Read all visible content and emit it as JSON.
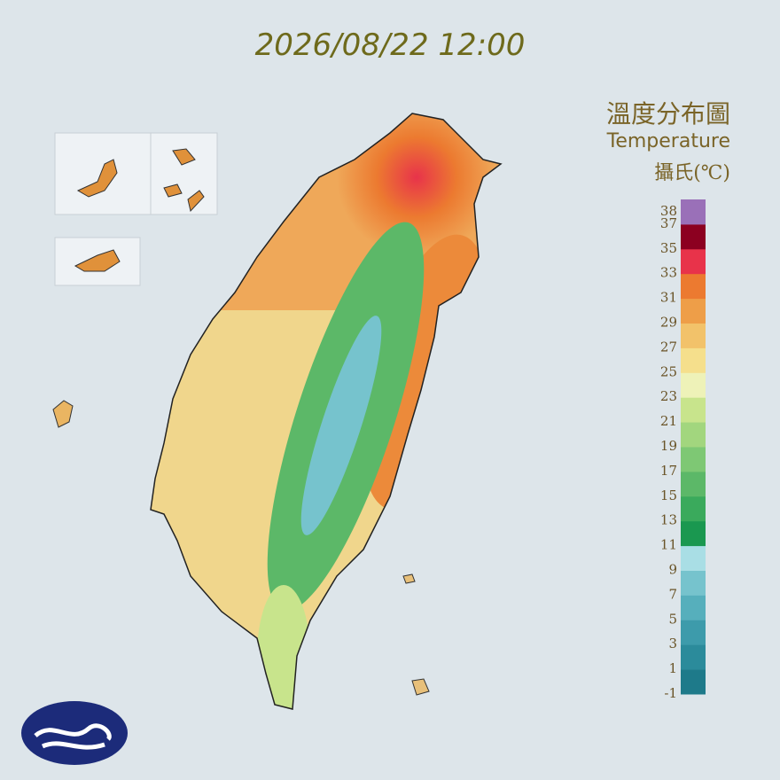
{
  "title": "2026/08/22 12:00",
  "legend": {
    "title": "溫度分布圖",
    "subtitle": "Temperature",
    "unit": "攝氏(℃)",
    "range": [
      -1,
      39
    ],
    "ticks": [
      38,
      37,
      35,
      33,
      31,
      29,
      27,
      25,
      23,
      21,
      19,
      17,
      15,
      13,
      11,
      9,
      7,
      5,
      3,
      1,
      -1
    ],
    "colors": [
      "#1e7a8a",
      "#2b8b9b",
      "#3d9bab",
      "#56afbc",
      "#76c3cd",
      "#a9dee5",
      "#1a9850",
      "#3aaa5c",
      "#5cb868",
      "#7ec874",
      "#a2d67e",
      "#c8e48c",
      "#eef2b8",
      "#f5df8c",
      "#f2c26a",
      "#ee9e48",
      "#ec7a30",
      "#e8334a",
      "#8c0020",
      "#9a70b8"
    ]
  }
}
